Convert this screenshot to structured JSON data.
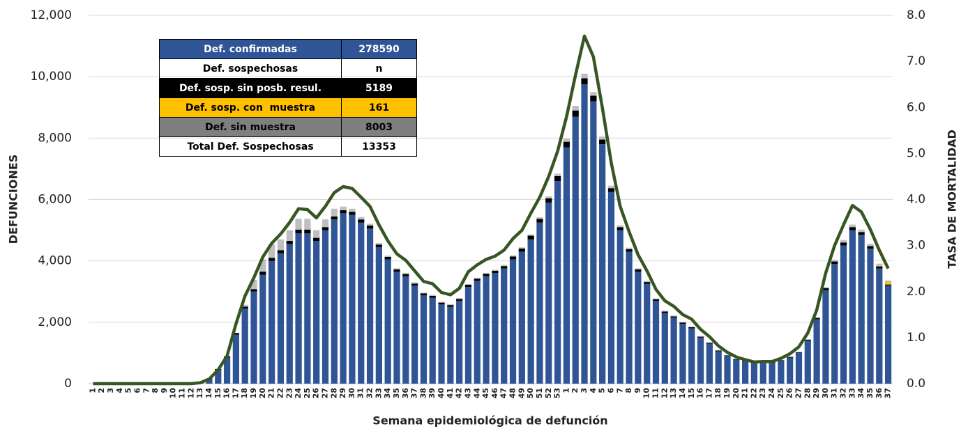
{
  "chart_data": {
    "type": "bar",
    "stacked": true,
    "y_label": "DEFUNCIONES",
    "y2_label": "TASA DE MORTALIDAD",
    "x_label": "Semana epidemiológica de defunción",
    "categories": [
      "1",
      "2",
      "3",
      "4",
      "5",
      "6",
      "7",
      "8",
      "9",
      "10",
      "11",
      "12",
      "13",
      "14",
      "15",
      "16",
      "17",
      "18",
      "19",
      "20",
      "21",
      "22",
      "23",
      "24",
      "25",
      "26",
      "27",
      "28",
      "29",
      "30",
      "31",
      "32",
      "33",
      "34",
      "35",
      "36",
      "37",
      "38",
      "39",
      "40",
      "41",
      "42",
      "43",
      "44",
      "45",
      "46",
      "47",
      "48",
      "49",
      "50",
      "51",
      "52",
      "53",
      "1",
      "2",
      "3",
      "4",
      "5",
      "6",
      "7",
      "8",
      "9",
      "10",
      "11",
      "12",
      "13",
      "14",
      "15",
      "16",
      "17",
      "18",
      "19",
      "20",
      "21",
      "22",
      "23",
      "24",
      "25",
      "26",
      "27",
      "28",
      "29",
      "30",
      "31",
      "32",
      "33",
      "34",
      "35",
      "36",
      "37"
    ],
    "ylim": [
      0,
      12000
    ],
    "yticks": [
      0,
      {
        "value": 2000,
        "label": "2,000"
      },
      {
        "value": 4000,
        "label": "4,000"
      },
      {
        "value": 6000,
        "label": "6,000"
      },
      {
        "value": 8000,
        "label": "8,000"
      },
      {
        "value": 10000,
        "label": "10,000"
      },
      {
        "value": 12000,
        "label": "12,000"
      }
    ],
    "y2lim": [
      0,
      8
    ],
    "y2ticks": [
      {
        "value": 0,
        "label": "0.0"
      },
      {
        "value": 1,
        "label": "1.0"
      },
      {
        "value": 2,
        "label": "2.0"
      },
      {
        "value": 3,
        "label": "3.0"
      },
      {
        "value": 4,
        "label": "4.0"
      },
      {
        "value": 5,
        "label": "5.0"
      },
      {
        "value": 6,
        "label": "6.0"
      },
      {
        "value": 7,
        "label": "7.0"
      },
      {
        "value": 8,
        "label": "8.0"
      }
    ],
    "grid": true,
    "series": [
      {
        "color": "#2f5597",
        "values": [
          0,
          0,
          0,
          0,
          0,
          0,
          0,
          0,
          0,
          0,
          0,
          0,
          20,
          150,
          450,
          850,
          1600,
          2450,
          3000,
          3550,
          4000,
          4250,
          4550,
          4900,
          4900,
          4650,
          5000,
          5350,
          5550,
          5500,
          5250,
          5050,
          4450,
          4050,
          3650,
          3500,
          3200,
          2880,
          2800,
          2580,
          2500,
          2700,
          3150,
          3350,
          3500,
          3600,
          3750,
          4050,
          4300,
          4700,
          5250,
          5900,
          6600,
          7700,
          8700,
          9750,
          9200,
          7800,
          6250,
          5000,
          4300,
          3650,
          3250,
          2700,
          2300,
          2150,
          1950,
          1800,
          1500,
          1300,
          1050,
          900,
          780,
          730,
          680,
          680,
          680,
          740,
          850,
          1000,
          1400,
          2100,
          3050,
          3900,
          4500,
          5000,
          4850,
          4400,
          3750,
          3200
        ]
      },
      {
        "color": "#000000",
        "values": [
          0,
          0,
          0,
          0,
          0,
          0,
          0,
          0,
          0,
          0,
          0,
          0,
          0,
          20,
          30,
          40,
          50,
          60,
          80,
          100,
          100,
          100,
          100,
          120,
          120,
          100,
          100,
          100,
          100,
          100,
          100,
          100,
          80,
          80,
          70,
          70,
          60,
          60,
          60,
          60,
          60,
          60,
          70,
          70,
          80,
          80,
          80,
          90,
          100,
          120,
          120,
          140,
          160,
          180,
          200,
          200,
          180,
          150,
          120,
          100,
          80,
          70,
          60,
          50,
          50,
          40,
          40,
          40,
          30,
          30,
          30,
          20,
          20,
          20,
          20,
          20,
          20,
          20,
          20,
          20,
          30,
          40,
          60,
          80,
          100,
          100,
          90,
          80,
          70,
          30
        ]
      },
      {
        "color": "#ffc000",
        "values": [
          0,
          0,
          0,
          0,
          0,
          0,
          0,
          0,
          0,
          0,
          0,
          0,
          0,
          0,
          0,
          0,
          0,
          0,
          0,
          0,
          0,
          0,
          0,
          0,
          0,
          0,
          0,
          0,
          0,
          0,
          0,
          0,
          0,
          0,
          0,
          0,
          0,
          0,
          0,
          0,
          0,
          0,
          0,
          0,
          0,
          0,
          0,
          0,
          0,
          0,
          0,
          0,
          0,
          0,
          0,
          0,
          0,
          0,
          0,
          0,
          0,
          0,
          0,
          0,
          0,
          0,
          0,
          0,
          0,
          0,
          0,
          0,
          0,
          0,
          0,
          0,
          0,
          0,
          0,
          0,
          0,
          0,
          0,
          0,
          0,
          0,
          0,
          0,
          20,
          80
        ]
      },
      {
        "color": "#bfbfbf",
        "values": [
          0,
          0,
          0,
          0,
          0,
          0,
          0,
          0,
          0,
          0,
          0,
          0,
          0,
          0,
          0,
          0,
          0,
          60,
          300,
          400,
          450,
          350,
          350,
          350,
          350,
          250,
          250,
          250,
          120,
          100,
          80,
          60,
          50,
          40,
          40,
          40,
          40,
          30,
          30,
          30,
          30,
          30,
          30,
          30,
          30,
          30,
          40,
          40,
          40,
          40,
          50,
          60,
          80,
          100,
          150,
          150,
          120,
          100,
          80,
          60,
          50,
          40,
          40,
          30,
          30,
          30,
          30,
          20,
          20,
          20,
          20,
          20,
          20,
          20,
          20,
          20,
          20,
          20,
          20,
          20,
          20,
          30,
          40,
          60,
          80,
          80,
          80,
          80,
          70,
          50
        ]
      },
      {
        "type": "line",
        "axis": "y2",
        "color": "#375623",
        "values": [
          0,
          0,
          0,
          0,
          0,
          0,
          0,
          0,
          0,
          0,
          0,
          0,
          0.02,
          0.1,
          0.3,
          0.6,
          1.3,
          1.9,
          2.3,
          2.75,
          3.05,
          3.25,
          3.5,
          3.8,
          3.78,
          3.6,
          3.85,
          4.15,
          4.28,
          4.24,
          4.05,
          3.85,
          3.45,
          3.1,
          2.82,
          2.68,
          2.45,
          2.22,
          2.17,
          1.98,
          1.93,
          2.07,
          2.43,
          2.58,
          2.7,
          2.77,
          2.9,
          3.15,
          3.33,
          3.7,
          4.05,
          4.5,
          5.05,
          5.8,
          6.7,
          7.55,
          7.1,
          6.0,
          4.8,
          3.85,
          3.3,
          2.8,
          2.45,
          2.05,
          1.8,
          1.68,
          1.5,
          1.4,
          1.18,
          1.02,
          0.82,
          0.68,
          0.58,
          0.52,
          0.47,
          0.48,
          0.48,
          0.55,
          0.65,
          0.8,
          1.1,
          1.6,
          2.4,
          3.0,
          3.45,
          3.87,
          3.73,
          3.35,
          2.9,
          2.5
        ]
      }
    ]
  },
  "table": {
    "rows": [
      [
        "Def. confirmadas",
        "278590"
      ],
      [
        "Def. sospechosas",
        "n"
      ],
      [
        "Def. sosp. sin posb. resul.",
        "5189"
      ],
      [
        "Def. sosp. con  muestra",
        "161"
      ],
      [
        "Def. sin muestra",
        "8003"
      ],
      [
        "Total Def. Sospechosas",
        "13353"
      ]
    ]
  }
}
